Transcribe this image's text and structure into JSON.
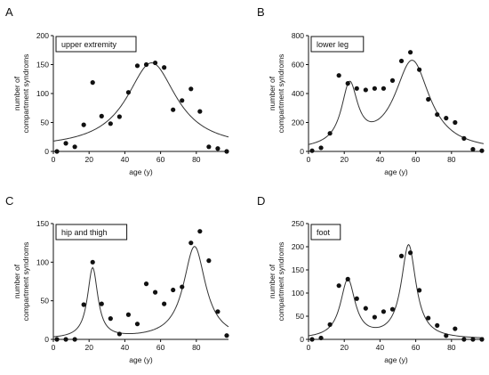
{
  "chart_data": [
    {
      "type": "scatter",
      "panel_letter": "A",
      "title": "upper extremity",
      "xlabel": "age (y)",
      "ylabel": [
        "number of",
        "compartment syndroms"
      ],
      "xlim": [
        0,
        98
      ],
      "ylim": [
        0,
        200
      ],
      "xticks": [
        0,
        20,
        40,
        60,
        80
      ],
      "yticks": [
        0,
        50,
        100,
        150,
        200
      ],
      "points": [
        [
          2,
          0
        ],
        [
          7,
          14
        ],
        [
          12,
          8
        ],
        [
          17,
          46
        ],
        [
          22,
          119
        ],
        [
          27,
          61
        ],
        [
          32,
          48
        ],
        [
          37,
          60
        ],
        [
          42,
          102
        ],
        [
          47,
          148
        ],
        [
          52,
          150
        ],
        [
          57,
          153
        ],
        [
          62,
          145
        ],
        [
          67,
          72
        ],
        [
          72,
          88
        ],
        [
          77,
          108
        ],
        [
          82,
          69
        ],
        [
          87,
          8
        ],
        [
          92,
          5
        ],
        [
          97,
          0
        ]
      ],
      "fit": {
        "kind": "lorentz",
        "baseline": 5,
        "peaks": [
          [
            55,
            148,
            17
          ]
        ]
      }
    },
    {
      "type": "scatter",
      "panel_letter": "B",
      "title": "lower leg",
      "xlabel": "age (y)",
      "ylabel": [
        "number of",
        "compartment syndroms"
      ],
      "xlim": [
        0,
        98
      ],
      "ylim": [
        0,
        800
      ],
      "xticks": [
        0,
        20,
        40,
        60,
        80
      ],
      "yticks": [
        0,
        200,
        400,
        600,
        800
      ],
      "points": [
        [
          2,
          5
        ],
        [
          7,
          25
        ],
        [
          12,
          125
        ],
        [
          17,
          525
        ],
        [
          22,
          470
        ],
        [
          27,
          435
        ],
        [
          32,
          425
        ],
        [
          37,
          435
        ],
        [
          42,
          435
        ],
        [
          47,
          490
        ],
        [
          52,
          625
        ],
        [
          57,
          685
        ],
        [
          62,
          565
        ],
        [
          67,
          360
        ],
        [
          72,
          255
        ],
        [
          77,
          230
        ],
        [
          82,
          200
        ],
        [
          87,
          90
        ],
        [
          92,
          15
        ],
        [
          97,
          5
        ]
      ],
      "fit": {
        "kind": "lorentz",
        "baseline": 0,
        "peaks": [
          [
            23,
            420,
            5.5
          ],
          [
            58,
            620,
            12
          ]
        ]
      }
    },
    {
      "type": "scatter",
      "panel_letter": "C",
      "title": "hip and thigh",
      "xlabel": "age (y)",
      "ylabel": [
        "number of",
        "compartment syndroms"
      ],
      "xlim": [
        0,
        98
      ],
      "ylim": [
        0,
        150
      ],
      "xticks": [
        0,
        20,
        40,
        60,
        80
      ],
      "yticks": [
        0,
        50,
        100,
        150
      ],
      "points": [
        [
          2,
          0
        ],
        [
          7,
          0
        ],
        [
          12,
          0
        ],
        [
          17,
          45
        ],
        [
          22,
          100
        ],
        [
          27,
          46
        ],
        [
          32,
          27
        ],
        [
          37,
          7
        ],
        [
          42,
          32
        ],
        [
          47,
          20
        ],
        [
          52,
          72
        ],
        [
          57,
          61
        ],
        [
          62,
          46
        ],
        [
          67,
          64
        ],
        [
          72,
          68
        ],
        [
          77,
          125
        ],
        [
          82,
          140
        ],
        [
          87,
          102
        ],
        [
          92,
          36
        ],
        [
          97,
          5
        ]
      ],
      "fit": {
        "kind": "lorentz",
        "baseline": 0,
        "peaks": [
          [
            22,
            91,
            3.5
          ],
          [
            79,
            120,
            7.5
          ]
        ]
      }
    },
    {
      "type": "scatter",
      "panel_letter": "D",
      "title": "foot",
      "xlabel": "age (y)",
      "ylabel": [
        "number of",
        "compartment syndroms"
      ],
      "xlim": [
        0,
        98
      ],
      "ylim": [
        0,
        250
      ],
      "xticks": [
        0,
        20,
        40,
        60,
        80
      ],
      "yticks": [
        0,
        50,
        100,
        150,
        200,
        250
      ],
      "points": [
        [
          2,
          0
        ],
        [
          7,
          3
        ],
        [
          12,
          32
        ],
        [
          17,
          116
        ],
        [
          22,
          130
        ],
        [
          27,
          88
        ],
        [
          32,
          67
        ],
        [
          37,
          48
        ],
        [
          42,
          60
        ],
        [
          47,
          65
        ],
        [
          52,
          180
        ],
        [
          57,
          187
        ],
        [
          62,
          106
        ],
        [
          67,
          46
        ],
        [
          72,
          30
        ],
        [
          77,
          8
        ],
        [
          82,
          23
        ],
        [
          87,
          0
        ],
        [
          92,
          0
        ],
        [
          97,
          0
        ]
      ],
      "fit": {
        "kind": "lorentz",
        "baseline": 0,
        "peaks": [
          [
            22,
            126,
            5
          ],
          [
            56,
            202,
            5
          ]
        ]
      }
    }
  ]
}
